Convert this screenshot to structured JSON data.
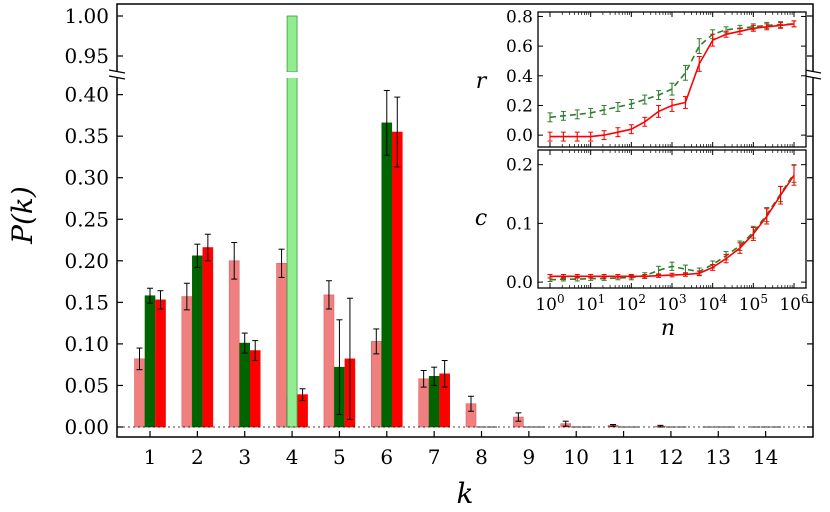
{
  "chart_data": {
    "main": {
      "type": "bar",
      "xlabel": "k",
      "ylabel": "P(k)",
      "categories": [
        "1",
        "2",
        "3",
        "4",
        "5",
        "6",
        "7",
        "8",
        "9",
        "10",
        "11",
        "12",
        "13",
        "14"
      ],
      "yticks_lower": [
        "0.00",
        "0.05",
        "0.10",
        "0.15",
        "0.20",
        "0.25",
        "0.30",
        "0.35",
        "0.40"
      ],
      "yticks_upper": [
        "0.95",
        "1.00"
      ],
      "ylim_lower": [
        0,
        0.42
      ],
      "ylim_upper": [
        0.93,
        1.005
      ],
      "series": [
        {
          "name": "pink",
          "color": "#f08080",
          "values": [
            0.082,
            0.157,
            0.2,
            0.197,
            0.159,
            0.103,
            0.058,
            0.028,
            0.012,
            0.004,
            0.002,
            0.001,
            0.0005,
            0.0002
          ],
          "errors": [
            0.013,
            0.016,
            0.022,
            0.017,
            0.017,
            0.015,
            0.01,
            0.009,
            0.005,
            0.003,
            0.001,
            0.001,
            0.0005,
            0.0002
          ]
        },
        {
          "name": "dark green",
          "color": "#006400",
          "values": [
            0.158,
            0.206,
            0.101,
            0.037,
            0.072,
            0.366,
            0.061,
            0,
            0,
            0,
            0,
            0,
            0,
            0
          ],
          "errors": [
            0.009,
            0.014,
            0.012,
            0.008,
            0.057,
            0.039,
            0.011,
            0,
            0,
            0,
            0,
            0,
            0,
            0
          ]
        },
        {
          "name": "red",
          "color": "#ff0000",
          "values": [
            0.153,
            0.216,
            0.092,
            0.039,
            0.082,
            0.355,
            0.064,
            0,
            0,
            0,
            0,
            0,
            0,
            0
          ],
          "errors": [
            0.011,
            0.016,
            0.012,
            0.007,
            0.073,
            0.042,
            0.016,
            0,
            0,
            0,
            0,
            0,
            0,
            0
          ]
        },
        {
          "name": "light green",
          "color": "#90ee90",
          "values": [
            0,
            0,
            0,
            1.0,
            0,
            0,
            0,
            0,
            0,
            0,
            0,
            0,
            0,
            0
          ],
          "errors": [
            0,
            0,
            0,
            0,
            0,
            0,
            0,
            0,
            0,
            0,
            0,
            0,
            0,
            0
          ]
        }
      ]
    },
    "insets": [
      {
        "type": "line",
        "ylabel": "r",
        "xscale": "log",
        "ylim": [
          -0.08,
          0.83
        ],
        "yticks": [
          "0.0",
          "0.2",
          "0.4",
          "0.6",
          "0.8"
        ],
        "ytick_values": [
          0,
          0.2,
          0.4,
          0.6,
          0.8
        ],
        "series": [
          {
            "name": "green dashed",
            "color": "#2e7d2e",
            "x": [
              0,
              0.33,
              0.67,
              1,
              1.33,
              1.67,
              2,
              2.33,
              2.67,
              3,
              3.33,
              3.67,
              4,
              4.33,
              4.67,
              5,
              5.33,
              5.67,
              6
            ],
            "y": [
              0.12,
              0.13,
              0.14,
              0.15,
              0.17,
              0.19,
              0.21,
              0.24,
              0.27,
              0.31,
              0.42,
              0.6,
              0.68,
              0.71,
              0.72,
              0.73,
              0.74,
              0.745,
              0.75
            ],
            "err": [
              0.03,
              0.03,
              0.03,
              0.03,
              0.03,
              0.03,
              0.03,
              0.03,
              0.03,
              0.04,
              0.05,
              0.05,
              0.03,
              0.02,
              0.02,
              0.02,
              0.02,
              0.02,
              0.02
            ]
          },
          {
            "name": "red solid",
            "color": "#ff0000",
            "x": [
              0,
              0.33,
              0.67,
              1,
              1.33,
              1.67,
              2,
              2.33,
              2.67,
              3,
              3.33,
              3.67,
              4,
              4.33,
              4.67,
              5,
              5.33,
              5.67,
              6
            ],
            "y": [
              -0.01,
              -0.01,
              -0.01,
              -0.01,
              0.0,
              0.02,
              0.04,
              0.09,
              0.16,
              0.2,
              0.22,
              0.48,
              0.64,
              0.68,
              0.7,
              0.72,
              0.73,
              0.74,
              0.75
            ],
            "err": [
              0.03,
              0.03,
              0.03,
              0.03,
              0.03,
              0.03,
              0.03,
              0.03,
              0.04,
              0.04,
              0.04,
              0.05,
              0.04,
              0.02,
              0.02,
              0.02,
              0.02,
              0.02,
              0.02
            ]
          }
        ]
      },
      {
        "type": "line",
        "ylabel": "c",
        "xlabel": "n",
        "xscale": "log",
        "ylim": [
          -0.01,
          0.225
        ],
        "yticks": [
          "0.0",
          "0.1",
          "0.2"
        ],
        "ytick_values": [
          0,
          0.1,
          0.2
        ],
        "xticks": [
          "0",
          "1",
          "2",
          "3",
          "4",
          "5",
          "6"
        ],
        "series": [
          {
            "name": "green dashed",
            "color": "#2e7d2e",
            "x": [
              0,
              0.33,
              0.67,
              1,
              1.33,
              1.67,
              2,
              2.33,
              2.67,
              3,
              3.33,
              3.67,
              4,
              4.33,
              4.67,
              5,
              5.33,
              5.67,
              6
            ],
            "y": [
              0.004,
              0.005,
              0.005,
              0.006,
              0.006,
              0.007,
              0.008,
              0.011,
              0.02,
              0.027,
              0.022,
              0.018,
              0.03,
              0.045,
              0.062,
              0.085,
              0.115,
              0.15,
              0.185
            ],
            "err": [
              0.003,
              0.003,
              0.003,
              0.003,
              0.003,
              0.003,
              0.004,
              0.005,
              0.007,
              0.007,
              0.007,
              0.006,
              0.006,
              0.007,
              0.008,
              0.01,
              0.012,
              0.013,
              0.015
            ]
          },
          {
            "name": "red solid",
            "color": "#ff0000",
            "x": [
              0,
              0.33,
              0.67,
              1,
              1.33,
              1.67,
              2,
              2.33,
              2.67,
              3,
              3.33,
              3.67,
              4,
              4.33,
              4.67,
              5,
              5.33,
              5.67,
              6
            ],
            "y": [
              0.01,
              0.01,
              0.01,
              0.01,
              0.01,
              0.01,
              0.01,
              0.01,
              0.011,
              0.012,
              0.013,
              0.015,
              0.025,
              0.04,
              0.058,
              0.082,
              0.112,
              0.148,
              0.182
            ],
            "err": [
              0.003,
              0.003,
              0.003,
              0.003,
              0.003,
              0.003,
              0.003,
              0.003,
              0.003,
              0.003,
              0.003,
              0.004,
              0.005,
              0.007,
              0.009,
              0.011,
              0.013,
              0.015,
              0.017
            ]
          }
        ]
      }
    ]
  }
}
